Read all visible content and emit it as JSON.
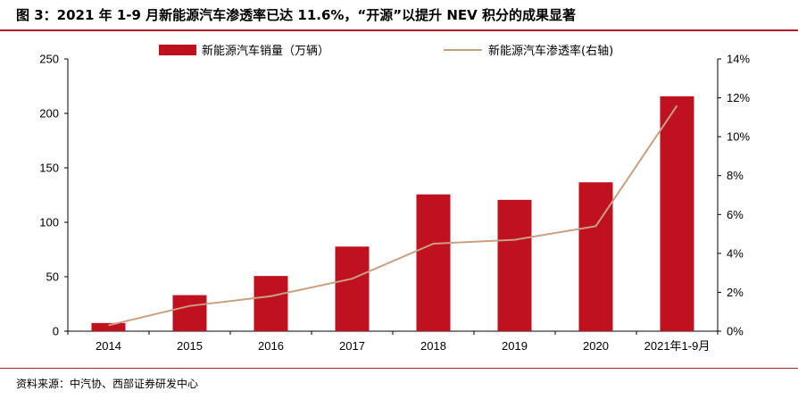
{
  "title": "图 3：2021 年 1-9 月新能源汽车渗透率已达 11.6%，“开源”以提升 NEV 积分的成果显著",
  "source": "资料来源：中汽协、西部证券研发中心",
  "chart_data": {
    "type": "bar",
    "categories": [
      "2014",
      "2015",
      "2016",
      "2017",
      "2018",
      "2019",
      "2020",
      "2021年1-9月"
    ],
    "series": [
      {
        "name": "新能源汽车销量（万辆）",
        "type": "bar",
        "axis": "left",
        "color": "#c0121e",
        "values": [
          7.5,
          33.1,
          50.7,
          77.7,
          125.6,
          120.6,
          136.7,
          215.7
        ]
      },
      {
        "name": "新能源汽车渗透率(右轴)",
        "type": "line",
        "axis": "right",
        "color": "#c8a080",
        "values": [
          0.3,
          1.3,
          1.8,
          2.7,
          4.5,
          4.7,
          5.4,
          11.6
        ]
      }
    ],
    "y_left": {
      "min": 0,
      "max": 250,
      "ticks": [
        "0",
        "50",
        "100",
        "150",
        "200",
        "250"
      ]
    },
    "y_right": {
      "min": 0,
      "max": 14,
      "ticks": [
        "0%",
        "2%",
        "4%",
        "6%",
        "8%",
        "10%",
        "12%",
        "14%"
      ]
    },
    "grid": false,
    "legend_position": "top"
  }
}
